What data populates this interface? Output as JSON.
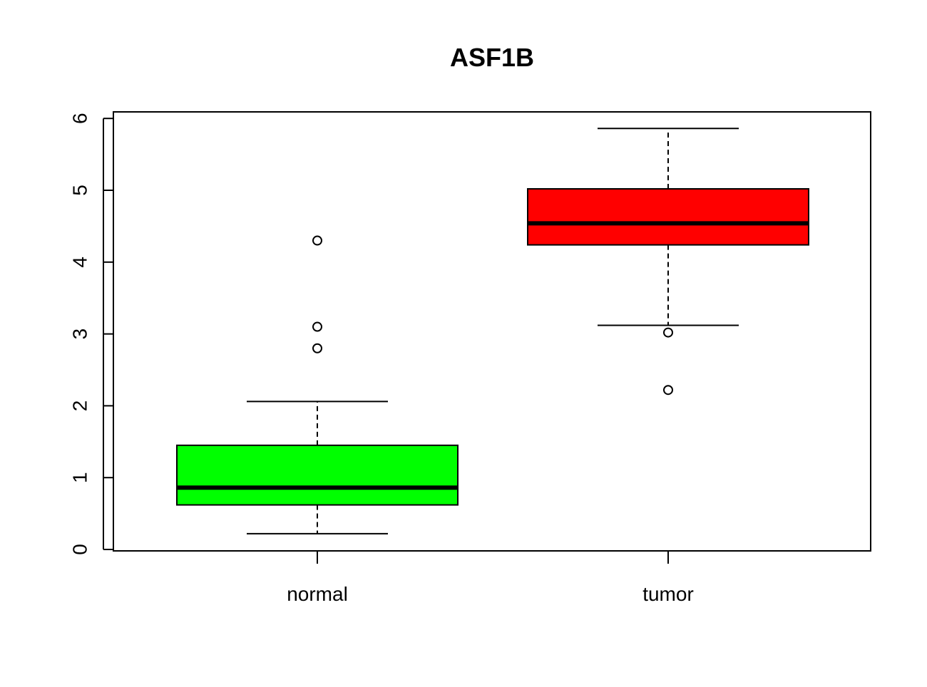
{
  "chart_data": {
    "type": "boxplot",
    "title": "ASF1B",
    "xlabel": "",
    "ylabel": "",
    "ylim": [
      0,
      6
    ],
    "yticks": [
      0,
      1,
      2,
      3,
      4,
      5,
      6
    ],
    "categories": [
      "normal",
      "tumor"
    ],
    "boxes": [
      {
        "name": "normal",
        "color": "#00ff00",
        "whisker_low": 0.22,
        "q1": 0.62,
        "median": 0.86,
        "q3": 1.45,
        "whisker_high": 2.06,
        "outliers": [
          2.8,
          3.1,
          4.3
        ]
      },
      {
        "name": "tumor",
        "color": "#ff0000",
        "whisker_low": 3.12,
        "q1": 4.24,
        "median": 4.54,
        "q3": 5.02,
        "whisker_high": 5.86,
        "outliers": [
          3.02,
          2.22
        ]
      }
    ],
    "grid": false,
    "legend": "none"
  }
}
